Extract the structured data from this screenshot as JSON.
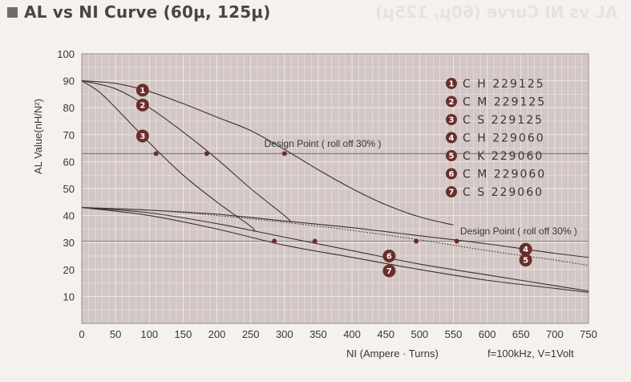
{
  "title": "AL vs NI Curve (60μ, 125μ)",
  "ghost_title": "AL vs NI Curve (60μ, 125μ)",
  "colors": {
    "plot_bg": "#d3c7c5",
    "grid": "#efe9e8",
    "curve": "#3b3131",
    "marker": "#6a2e2a",
    "title_square": "#6f6b69"
  },
  "chart_data": {
    "type": "line",
    "title": "AL vs NI Curve (60μ, 125μ)",
    "ylabel": "AL Value(nH/N²)",
    "xlabel": "NI (Ampere · Turns)",
    "test_condition": "f=100kHz, V=1Volt",
    "xlim": [
      0,
      750
    ],
    "ylim": [
      0,
      100
    ],
    "x_ticks": [
      "0",
      "50",
      "100",
      "150",
      "200",
      "250",
      "300",
      "350",
      "400",
      "450",
      "500",
      "550",
      "600",
      "650",
      "700",
      "750"
    ],
    "y_ticks": [
      "10",
      "20",
      "30",
      "40",
      "50",
      "60",
      "70",
      "80",
      "90",
      "100"
    ],
    "grid": true,
    "legend_position": "top-right",
    "series": [
      {
        "id": "1",
        "name": "C H 229125",
        "style": "solid",
        "points": [
          [
            0,
            90
          ],
          [
            50,
            89
          ],
          [
            100,
            86
          ],
          [
            150,
            81.5
          ],
          [
            200,
            76.5
          ],
          [
            250,
            71.5
          ],
          [
            300,
            64.5
          ],
          [
            350,
            57
          ],
          [
            400,
            50
          ],
          [
            450,
            44
          ],
          [
            500,
            39.5
          ],
          [
            550,
            36.5
          ]
        ],
        "design_point": [
          300,
          63
        ]
      },
      {
        "id": "2",
        "name": "C M 229125",
        "style": "solid",
        "points": [
          [
            0,
            90
          ],
          [
            50,
            87
          ],
          [
            100,
            80
          ],
          [
            150,
            71
          ],
          [
            200,
            61
          ],
          [
            250,
            50
          ],
          [
            300,
            40
          ],
          [
            310,
            37.5
          ]
        ],
        "design_point": [
          185,
          63
        ]
      },
      {
        "id": "3",
        "name": "C S 229125",
        "style": "solid",
        "points": [
          [
            0,
            90
          ],
          [
            25,
            86
          ],
          [
            50,
            80
          ],
          [
            100,
            67
          ],
          [
            150,
            55
          ],
          [
            200,
            45
          ],
          [
            250,
            36
          ],
          [
            255,
            34
          ]
        ],
        "design_point": [
          110,
          63
        ]
      },
      {
        "id": "4",
        "name": "C H 229060",
        "style": "solid",
        "points": [
          [
            0,
            43
          ],
          [
            100,
            42
          ],
          [
            200,
            40.5
          ],
          [
            300,
            38
          ],
          [
            400,
            35.5
          ],
          [
            500,
            32.5
          ],
          [
            600,
            29.5
          ],
          [
            700,
            26
          ],
          [
            750,
            24.5
          ]
        ],
        "design_point": [
          555,
          30.5
        ]
      },
      {
        "id": "5",
        "name": "C K 229060",
        "style": "dotted",
        "points": [
          [
            0,
            43
          ],
          [
            100,
            42
          ],
          [
            200,
            40
          ],
          [
            300,
            37.5
          ],
          [
            400,
            34.5
          ],
          [
            500,
            31
          ],
          [
            600,
            27
          ],
          [
            700,
            23.5
          ],
          [
            750,
            21.5
          ]
        ],
        "design_point": [
          495,
          30.5
        ]
      },
      {
        "id": "6",
        "name": "C M 229060",
        "style": "solid",
        "points": [
          [
            0,
            43
          ],
          [
            100,
            41
          ],
          [
            200,
            37
          ],
          [
            300,
            32
          ],
          [
            400,
            27
          ],
          [
            500,
            22
          ],
          [
            600,
            18
          ],
          [
            700,
            14
          ],
          [
            750,
            12
          ]
        ],
        "design_point": [
          345,
          30.5
        ]
      },
      {
        "id": "7",
        "name": "C S 229060",
        "style": "solid",
        "points": [
          [
            0,
            43
          ],
          [
            100,
            40
          ],
          [
            200,
            35
          ],
          [
            300,
            29
          ],
          [
            400,
            24.5
          ],
          [
            500,
            20
          ],
          [
            600,
            16
          ],
          [
            700,
            13
          ],
          [
            750,
            11.5
          ]
        ],
        "design_point": [
          285,
          30.5
        ]
      }
    ],
    "series_markers": [
      {
        "id": "1",
        "at": [
          90,
          86.5
        ]
      },
      {
        "id": "2",
        "at": [
          90,
          81
        ]
      },
      {
        "id": "3",
        "at": [
          90,
          69.5
        ]
      },
      {
        "id": "4",
        "at": [
          657,
          27.5
        ]
      },
      {
        "id": "5",
        "at": [
          657,
          23.5
        ]
      },
      {
        "id": "6",
        "at": [
          455,
          25
        ]
      },
      {
        "id": "7",
        "at": [
          455,
          19.5
        ]
      }
    ],
    "annotations": [
      {
        "text": "Design Point ( roll off 30% )",
        "anchor": [
          270,
          65.5
        ]
      },
      {
        "text": "Design Point ( roll off 30% )",
        "anchor": [
          560,
          33
        ]
      }
    ]
  }
}
